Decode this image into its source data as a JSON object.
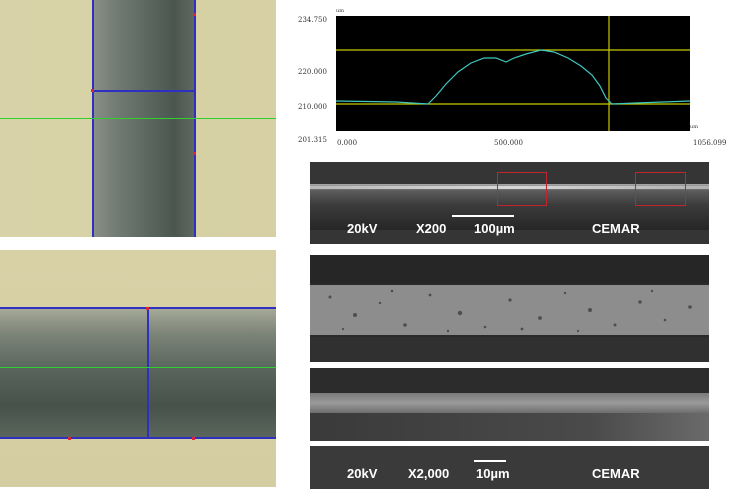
{
  "profile_plot": {
    "y_axis_unit": "um",
    "y_ticks": [
      "234.750",
      "220.000",
      "210.000",
      "201.315"
    ],
    "x_axis_unit": "um",
    "x_ticks": [
      "0.000",
      "500.000",
      "1056.099"
    ]
  },
  "sem_low_mag": {
    "voltage": "20kV",
    "magnification": "X200",
    "scale": "100µm",
    "lab": "CEMAR"
  },
  "sem_high_mag": {
    "voltage": "20kV",
    "magnification": "X2,000",
    "scale": "10µm",
    "lab": "CEMAR"
  },
  "colors": {
    "cursor_line": "#c8c800",
    "profile_trace": "#3fc7c0",
    "roi_box": "#c0262c",
    "measure_line": "#2028c8",
    "center_line": "#2fd02f"
  }
}
